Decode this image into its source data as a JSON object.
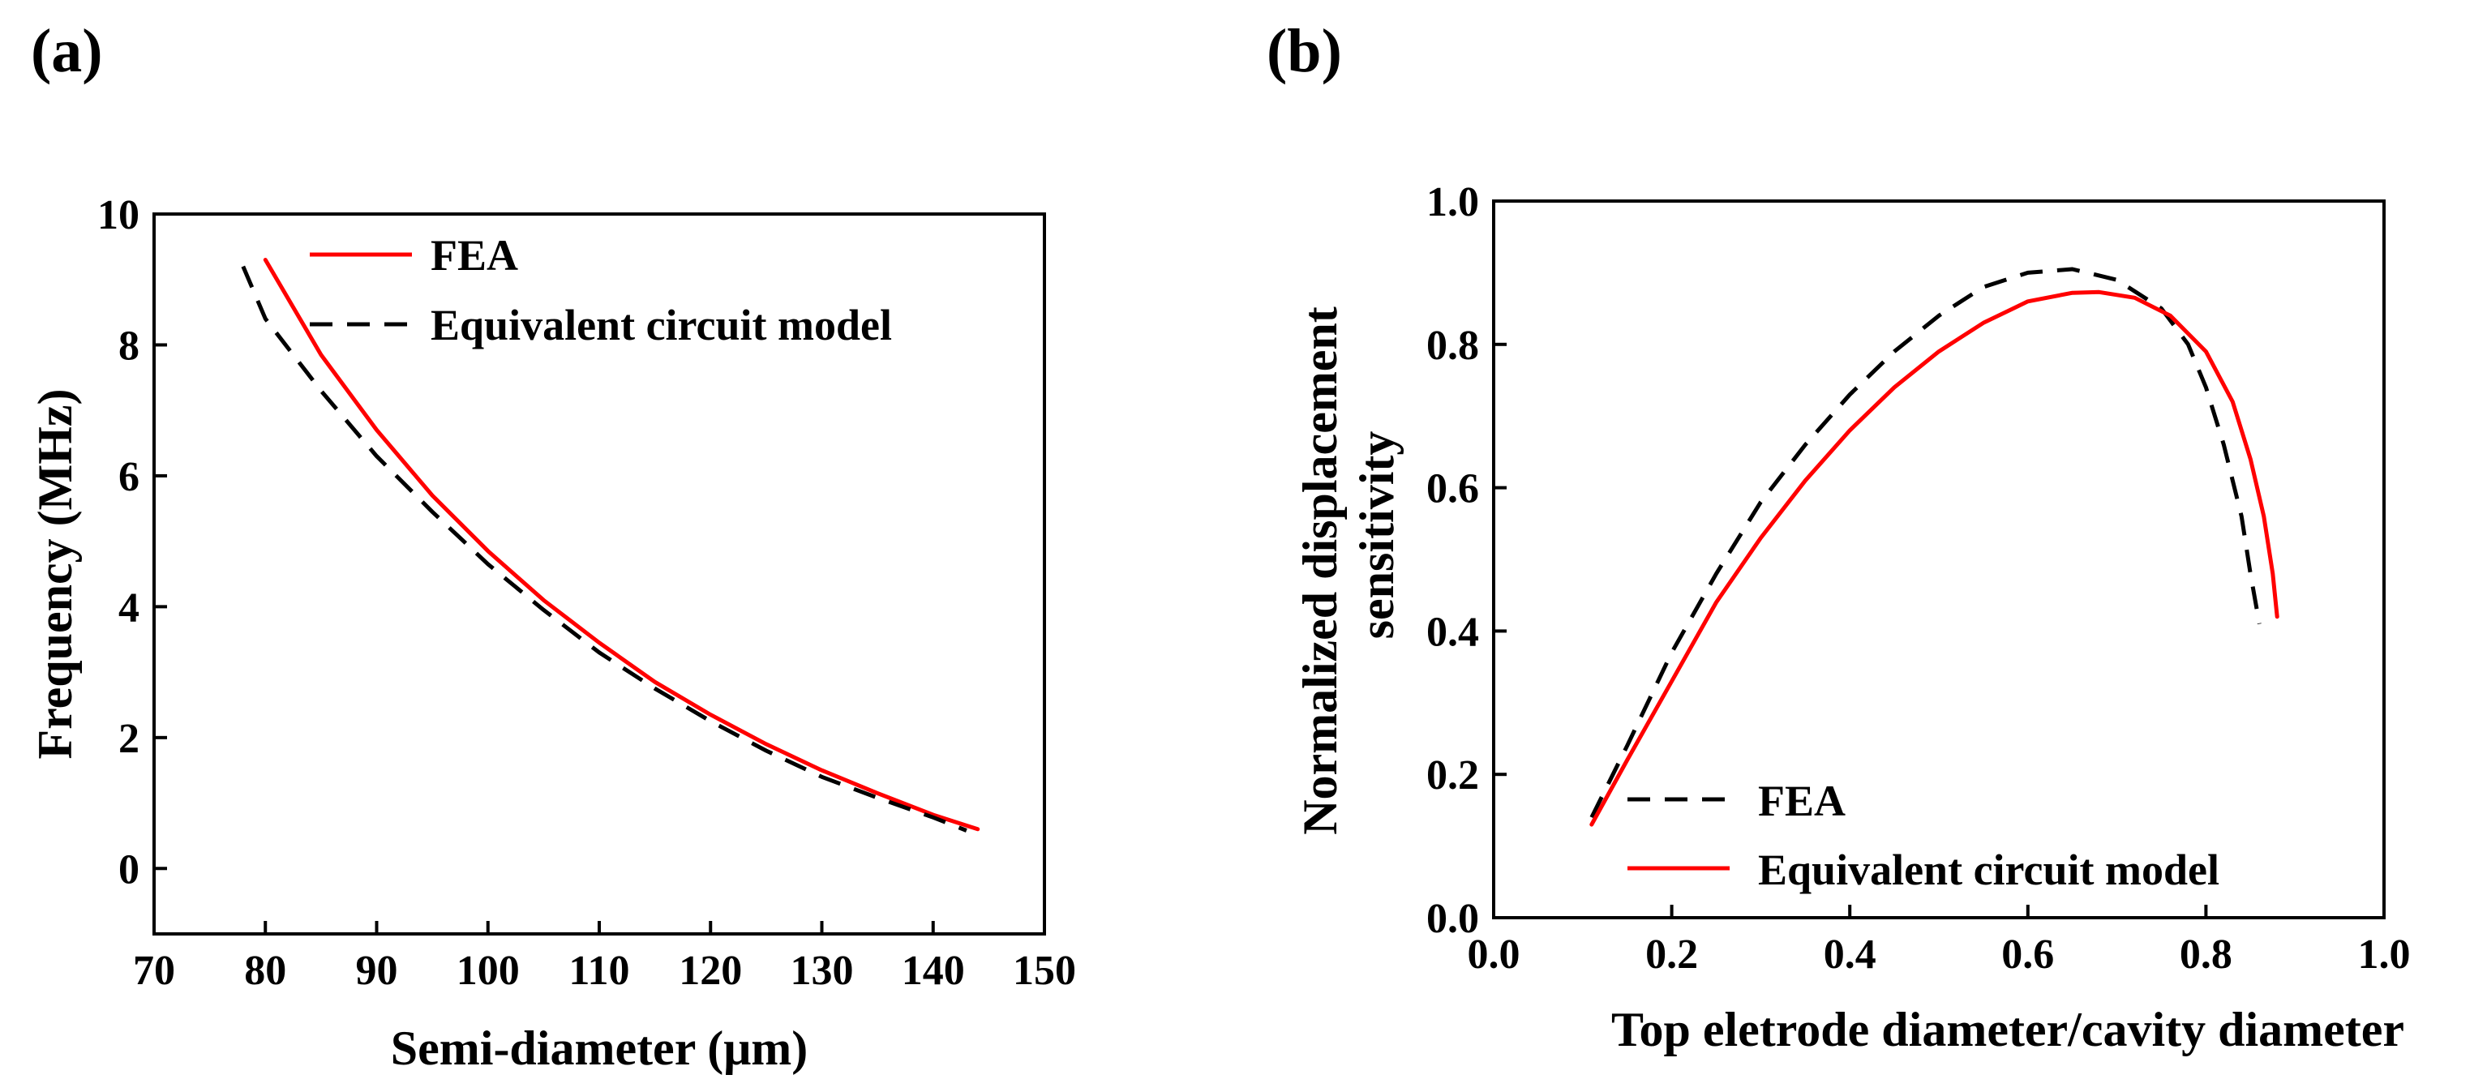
{
  "chart_data": [
    {
      "panel_label": "(a)",
      "type": "line",
      "title": "",
      "xlabel": "Semi-diameter (μm)",
      "ylabel": "Frequency (MHz)",
      "xlim": [
        70,
        150
      ],
      "ylim": [
        -1,
        10
      ],
      "xticks": [
        70,
        80,
        90,
        100,
        110,
        120,
        130,
        140,
        150
      ],
      "yticks": [
        0,
        2,
        4,
        6,
        8,
        10
      ],
      "grid": false,
      "legend_position": "top-right",
      "series": [
        {
          "name": "FEA",
          "style": "solid",
          "color": "#ff0000",
          "x": [
            80,
            85,
            90,
            95,
            100,
            105,
            110,
            115,
            120,
            125,
            130,
            135,
            140,
            144
          ],
          "y": [
            9.3,
            7.85,
            6.7,
            5.7,
            4.85,
            4.1,
            3.45,
            2.85,
            2.35,
            1.9,
            1.5,
            1.15,
            0.82,
            0.6
          ]
        },
        {
          "name": "Equivalent circuit model",
          "style": "dashed",
          "color": "#000000",
          "x": [
            78,
            80,
            85,
            90,
            95,
            100,
            105,
            110,
            115,
            120,
            125,
            130,
            135,
            140,
            143
          ],
          "y": [
            9.2,
            8.4,
            7.3,
            6.3,
            5.45,
            4.65,
            3.95,
            3.3,
            2.75,
            2.25,
            1.8,
            1.4,
            1.08,
            0.78,
            0.58
          ]
        }
      ]
    },
    {
      "panel_label": "(b)",
      "type": "line",
      "title": "",
      "xlabel": "Top eletrode diameter/cavity diameter",
      "ylabel": [
        "Normalized displacement",
        "sensitivity"
      ],
      "xlim": [
        0.0,
        1.0
      ],
      "ylim": [
        0.0,
        1.0
      ],
      "xticks": [
        0.0,
        0.2,
        0.4,
        0.6,
        0.8,
        1.0
      ],
      "yticks": [
        0.0,
        0.2,
        0.4,
        0.6,
        0.8,
        1.0
      ],
      "xtick_labels": [
        "0.0",
        "0.2",
        "0.4",
        "0.6",
        "0.8",
        "1.0"
      ],
      "ytick_labels": [
        "0.0",
        "0.2",
        "0.4",
        "0.6",
        "0.8",
        "1.0"
      ],
      "grid": false,
      "legend_position": "bottom-right",
      "series": [
        {
          "name": "FEA",
          "style": "dashed",
          "color": "#000000",
          "x": [
            0.11,
            0.15,
            0.2,
            0.25,
            0.3,
            0.35,
            0.4,
            0.45,
            0.5,
            0.55,
            0.6,
            0.65,
            0.7,
            0.75,
            0.78,
            0.8,
            0.82,
            0.84,
            0.85,
            0.86
          ],
          "y": [
            0.14,
            0.24,
            0.37,
            0.48,
            0.58,
            0.66,
            0.73,
            0.79,
            0.84,
            0.88,
            0.9,
            0.905,
            0.89,
            0.85,
            0.8,
            0.74,
            0.66,
            0.56,
            0.48,
            0.41
          ]
        },
        {
          "name": "Equivalent circuit model",
          "style": "solid",
          "color": "#ff0000",
          "x": [
            0.11,
            0.15,
            0.2,
            0.25,
            0.3,
            0.35,
            0.4,
            0.45,
            0.5,
            0.55,
            0.6,
            0.65,
            0.68,
            0.72,
            0.76,
            0.8,
            0.83,
            0.85,
            0.865,
            0.875,
            0.88
          ],
          "y": [
            0.13,
            0.22,
            0.33,
            0.44,
            0.53,
            0.61,
            0.68,
            0.74,
            0.79,
            0.83,
            0.86,
            0.872,
            0.873,
            0.865,
            0.84,
            0.79,
            0.72,
            0.64,
            0.56,
            0.48,
            0.42
          ]
        }
      ]
    }
  ]
}
